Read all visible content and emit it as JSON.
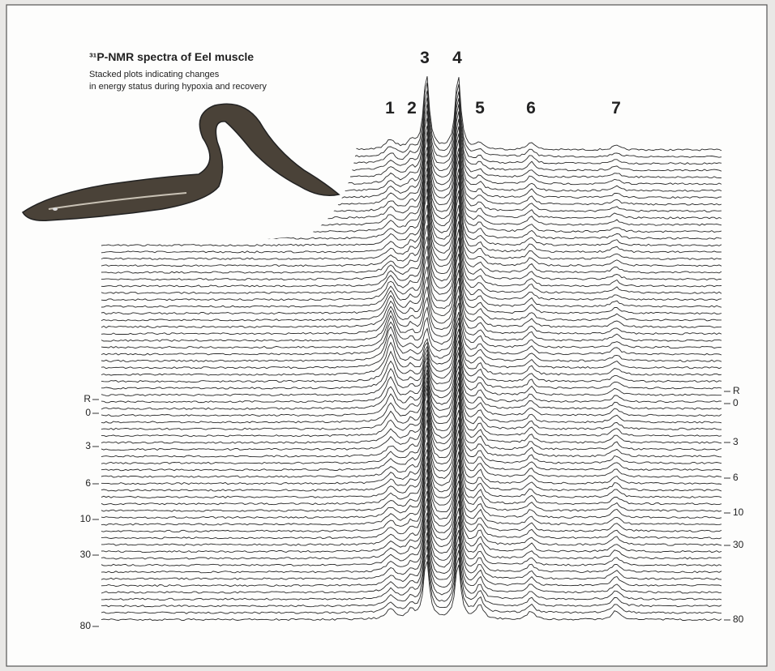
{
  "title": "³¹P-NMR spectra of Eel muscle",
  "subtitle": [
    "Stacked plots indicating changes",
    "in energy status during hypoxia and recovery"
  ],
  "peaks": [
    "1",
    "2",
    "3",
    "4",
    "5",
    "6",
    "7"
  ],
  "left_labels": [
    "R",
    "0",
    "3",
    "6",
    "10",
    "30",
    "80"
  ],
  "right_labels": [
    "R",
    "0",
    "3",
    "6",
    "10",
    "30",
    "80"
  ]
}
